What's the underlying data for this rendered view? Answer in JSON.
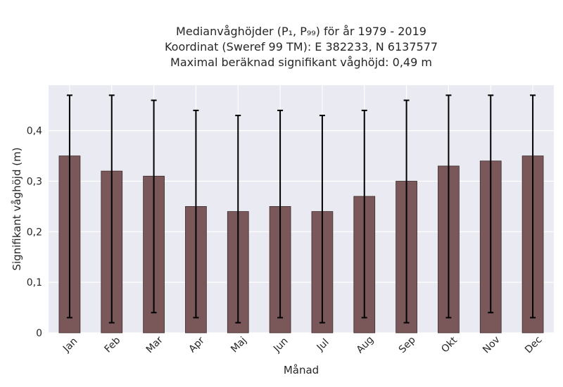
{
  "chart_data": {
    "type": "bar",
    "title_lines": [
      "Medianvåghöjder (P₁, P₉₉) för år 1979 - 2019",
      "Koordinat (Sweref 99 TM): E 382233, N 6137577",
      "Maximal beräknad signifikant våghöjd: 0,49 m"
    ],
    "xlabel": "Månad",
    "ylabel": "Signifikant våghöjd (m)",
    "categories": [
      "Jan",
      "Feb",
      "Mar",
      "Apr",
      "Maj",
      "Jun",
      "Jul",
      "Aug",
      "Sep",
      "Okt",
      "Nov",
      "Dec"
    ],
    "values": [
      0.35,
      0.32,
      0.31,
      0.25,
      0.24,
      0.25,
      0.24,
      0.27,
      0.3,
      0.33,
      0.34,
      0.35
    ],
    "p1": [
      0.03,
      0.02,
      0.04,
      0.03,
      0.02,
      0.03,
      0.02,
      0.03,
      0.02,
      0.03,
      0.04,
      0.03
    ],
    "p99": [
      0.47,
      0.47,
      0.46,
      0.44,
      0.43,
      0.44,
      0.43,
      0.44,
      0.46,
      0.47,
      0.47,
      0.47
    ],
    "yticks": [
      0,
      0.1,
      0.2,
      0.3,
      0.4
    ],
    "ytick_labels": [
      "0",
      "0,1",
      "0,2",
      "0,3",
      "0,4"
    ],
    "ylim": [
      0,
      0.49
    ],
    "grid": true,
    "colors": {
      "bar": "#7a5758",
      "bar_edge": "#3d2c2c",
      "error": "#000000",
      "plot_bg": "#eaeaf2",
      "grid": "#ffffff"
    }
  }
}
